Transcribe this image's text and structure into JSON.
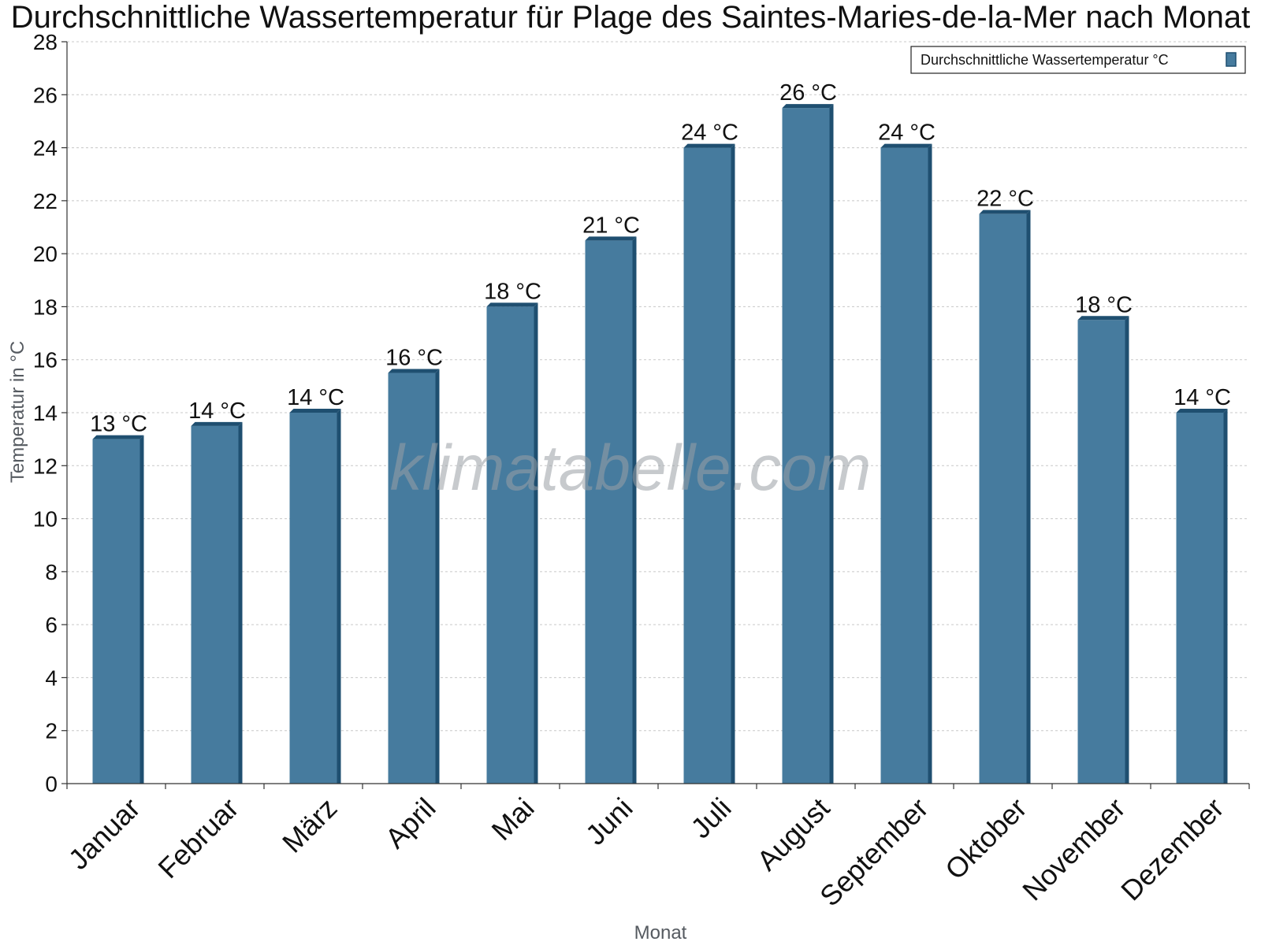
{
  "chart_data": {
    "type": "bar",
    "title": "Durchschnittliche Wassertemperatur für Plage des Saintes-Maries-de-la-Mer nach Monat",
    "xlabel": "Monat",
    "ylabel": "Temperatur in °C",
    "ylim": [
      0,
      28
    ],
    "yticks": [
      0,
      2,
      4,
      6,
      8,
      10,
      12,
      14,
      16,
      18,
      20,
      22,
      24,
      26,
      28
    ],
    "grid": true,
    "legend_position": "top-right",
    "categories": [
      "Januar",
      "Februar",
      "März",
      "April",
      "Mai",
      "Juni",
      "Juli",
      "August",
      "September",
      "Oktober",
      "November",
      "Dezember"
    ],
    "series": [
      {
        "name": "Durchschnittliche Wassertemperatur °C",
        "values": [
          13,
          13.5,
          14,
          15.5,
          18,
          20.5,
          24,
          25.5,
          24,
          21.5,
          17.5,
          14
        ],
        "labels": [
          "13 °C",
          "14 °C",
          "14 °C",
          "16 °C",
          "18 °C",
          "21 °C",
          "24 °C",
          "26 °C",
          "24 °C",
          "22 °C",
          "18 °C",
          "14 °C"
        ],
        "color": "#467b9e",
        "edge_color": "#1f4f70"
      }
    ],
    "watermark": "klimatabelle.com"
  }
}
